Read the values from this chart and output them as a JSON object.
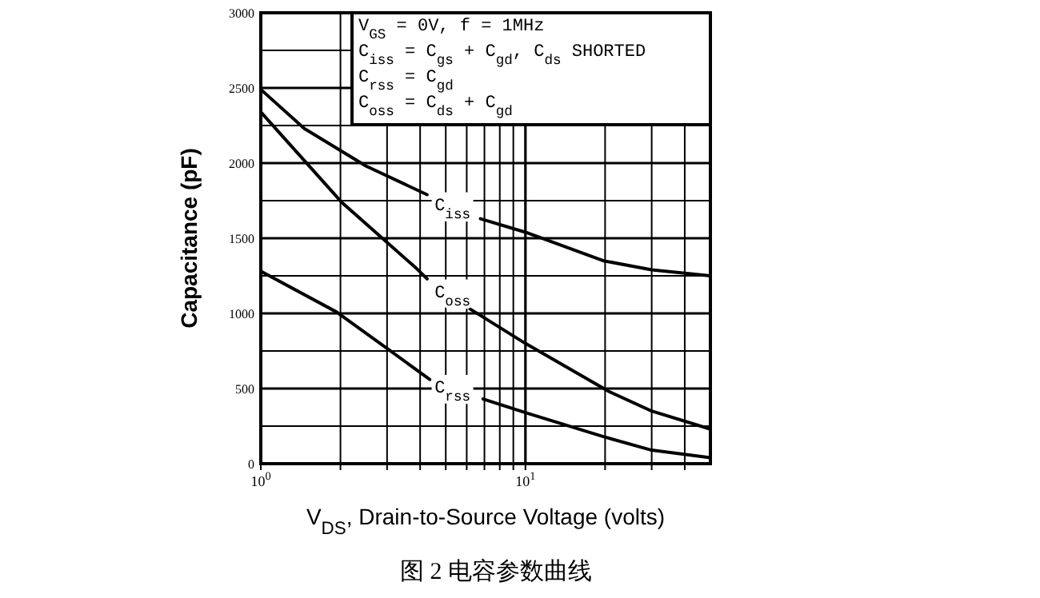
{
  "chart_data": {
    "type": "line",
    "xlabel": "V$_{DS}$, Drain-to-Source Voltage (volts)",
    "ylabel": "Capacitance (pF)",
    "log": "x",
    "grid": true,
    "legend": false,
    "xlim": [
      1,
      50
    ],
    "ylim": [
      0,
      3000
    ],
    "xticks": [
      {
        "value": 1,
        "label": "10$^{0}$"
      },
      {
        "value": 2,
        "label": null
      },
      {
        "value": 3,
        "label": null
      },
      {
        "value": 4,
        "label": null
      },
      {
        "value": 5,
        "label": null
      },
      {
        "value": 6,
        "label": null
      },
      {
        "value": 7,
        "label": null
      },
      {
        "value": 8,
        "label": null
      },
      {
        "value": 9,
        "label": null
      },
      {
        "value": 10,
        "label": "10$^{1}$"
      },
      {
        "value": 20,
        "label": null
      },
      {
        "value": 30,
        "label": null
      },
      {
        "value": 40,
        "label": null
      }
    ],
    "yticks": [
      0,
      {
        "value": 250,
        "label": null
      },
      500,
      {
        "value": 750,
        "label": null
      },
      1000,
      {
        "value": 1250,
        "label": null
      },
      1500,
      {
        "value": 1750,
        "label": null
      },
      2000,
      {
        "value": 2250,
        "label": null
      },
      2500,
      {
        "value": 2750,
        "label": null
      },
      3000
    ],
    "series": [
      {
        "name": "C$_{iss}$",
        "color": "#000000",
        "x": [
          1,
          1.46,
          2.5,
          4.25,
          5.3,
          6.76,
          10,
          19.7,
          30,
          50
        ],
        "values": [
          2490,
          2230,
          1980,
          1790,
          null,
          1630,
          1540,
          1350,
          1290,
          1250
        ]
      },
      {
        "name": "C$_{oss}$",
        "color": "#000000",
        "x": [
          1,
          2.02,
          3.87,
          4.25,
          5.3,
          6.17,
          10,
          20.7,
          30,
          50
        ],
        "values": [
          2340,
          1740,
          1300,
          1230,
          null,
          1030,
          800,
          480,
          350,
          230
        ]
      },
      {
        "name": "C$_{rss}$",
        "color": "#000000",
        "x": [
          1,
          1.93,
          2.93,
          4.35,
          5.3,
          6.92,
          10,
          19.7,
          30,
          50
        ],
        "values": [
          1280,
          1010,
          780,
          560,
          null,
          430,
          340,
          180,
          90,
          40
        ]
      }
    ],
    "annotations": [
      "V$_{GS}$ = 0V,  f = 1MHz",
      "C$_{iss}$ = C$_{gs}$ + C$_{gd}$,  C$_{ds}$ SHORTED",
      "C$_{rss}$ = C$_{gd}$",
      "C$_{oss}$ = C$_{ds}$ + C$_{gd}$",
      "图 2 电容参数曲线"
    ]
  }
}
